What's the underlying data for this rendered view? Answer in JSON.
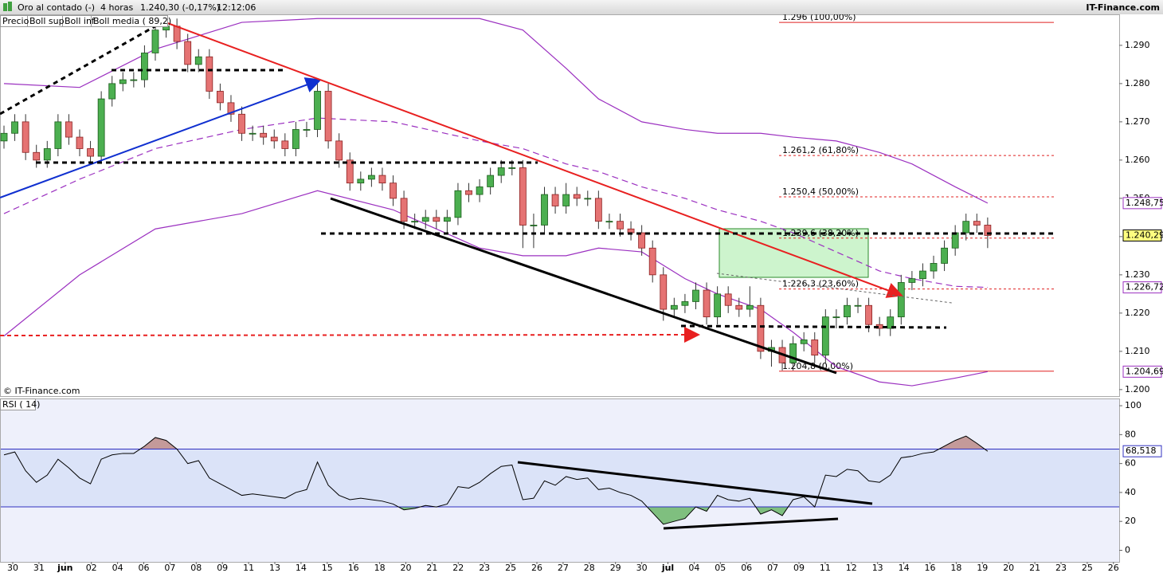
{
  "header": {
    "instrument": "Oro al contado (-)",
    "timeframe": "4 horas",
    "price": "1.240,30 (-0,17%)",
    "time": "12:12:06",
    "brand": "IT-Finance.com"
  },
  "watermark": "© IT-Finance.com",
  "chart_data": [
    {
      "type": "candlestick",
      "ylim": [
        1.1983,
        1.2981
      ],
      "yticks": [
        {
          "value": 1.2,
          "label": "1.200"
        },
        {
          "value": 1.21,
          "label": "1.210"
        },
        {
          "value": 1.22,
          "label": "1.220"
        },
        {
          "value": 1.23,
          "label": "1.230"
        },
        {
          "value": 1.24,
          "label": "1.240"
        },
        {
          "value": 1.25,
          "label": "1.250"
        },
        {
          "value": 1.26,
          "label": "1.260"
        },
        {
          "value": 1.27,
          "label": "1.270"
        },
        {
          "value": 1.28,
          "label": "1.280"
        },
        {
          "value": 1.29,
          "label": "1.290"
        }
      ],
      "date_labels": [
        "30",
        "31",
        "jun",
        "02",
        "04",
        "06",
        "07",
        "08",
        "09",
        "11",
        "13",
        "14",
        "15",
        "16",
        "18",
        "20",
        "21",
        "22",
        "23",
        "25",
        "26",
        "27",
        "28",
        "29",
        "30",
        "jul",
        "04",
        "05",
        "06",
        "07",
        "09",
        "11",
        "12",
        "13",
        "14",
        "16",
        "18",
        "19",
        "20",
        "21",
        "23",
        "25",
        "26"
      ],
      "candles": {
        "name": "Precio",
        "up_color": "#4caf50",
        "down_color": "#e57373",
        "open": [
          1.265,
          1.267,
          1.27,
          1.262,
          1.26,
          1.263,
          1.27,
          1.266,
          1.263,
          1.261,
          1.276,
          1.28,
          1.281,
          1.281,
          1.288,
          1.294,
          1.295,
          1.291,
          1.285,
          1.287,
          1.278,
          1.275,
          1.272,
          1.267,
          1.267,
          1.266,
          1.265,
          1.263,
          1.268,
          1.268,
          1.278,
          1.265,
          1.26,
          1.254,
          1.255,
          1.256,
          1.254,
          1.25,
          1.244,
          1.244,
          1.245,
          1.244,
          1.245,
          1.252,
          1.251,
          1.253,
          1.256,
          1.258,
          1.258,
          1.243,
          1.243,
          1.251,
          1.248,
          1.251,
          1.25,
          1.25,
          1.244,
          1.244,
          1.242,
          1.241,
          1.237,
          1.23,
          1.221,
          1.222,
          1.223,
          1.226,
          1.219,
          1.225,
          1.222,
          1.221,
          1.222,
          1.21,
          1.211,
          1.207,
          1.212,
          1.213,
          1.209,
          1.219,
          1.219,
          1.222,
          1.222,
          1.217,
          1.216,
          1.219,
          1.228,
          1.229,
          1.231,
          1.233,
          1.237,
          1.241,
          1.244,
          1.243
        ],
        "high": [
          1.269,
          1.272,
          1.272,
          1.264,
          1.265,
          1.272,
          1.272,
          1.268,
          1.265,
          1.278,
          1.282,
          1.283,
          1.283,
          1.29,
          1.296,
          1.297,
          1.297,
          1.293,
          1.289,
          1.289,
          1.28,
          1.277,
          1.274,
          1.269,
          1.269,
          1.268,
          1.267,
          1.27,
          1.27,
          1.281,
          1.28,
          1.267,
          1.262,
          1.257,
          1.258,
          1.258,
          1.256,
          1.252,
          1.246,
          1.247,
          1.247,
          1.247,
          1.254,
          1.254,
          1.255,
          1.258,
          1.26,
          1.26,
          1.26,
          1.246,
          1.253,
          1.253,
          1.254,
          1.253,
          1.252,
          1.252,
          1.246,
          1.246,
          1.244,
          1.243,
          1.239,
          1.232,
          1.224,
          1.225,
          1.228,
          1.228,
          1.227,
          1.227,
          1.224,
          1.227,
          1.224,
          1.213,
          1.213,
          1.214,
          1.215,
          1.215,
          1.221,
          1.221,
          1.224,
          1.224,
          1.224,
          1.219,
          1.221,
          1.23,
          1.231,
          1.233,
          1.235,
          1.239,
          1.243,
          1.246,
          1.246,
          1.245
        ],
        "low": [
          1.263,
          1.265,
          1.26,
          1.258,
          1.258,
          1.261,
          1.264,
          1.261,
          1.259,
          1.259,
          1.274,
          1.278,
          1.279,
          1.279,
          1.286,
          1.292,
          1.289,
          1.283,
          1.283,
          1.276,
          1.273,
          1.27,
          1.265,
          1.265,
          1.264,
          1.263,
          1.261,
          1.261,
          1.266,
          1.266,
          1.263,
          1.258,
          1.252,
          1.252,
          1.253,
          1.252,
          1.248,
          1.242,
          1.242,
          1.242,
          1.242,
          1.241,
          1.243,
          1.249,
          1.249,
          1.251,
          1.254,
          1.256,
          1.237,
          1.237,
          1.241,
          1.246,
          1.246,
          1.248,
          1.248,
          1.242,
          1.242,
          1.24,
          1.239,
          1.235,
          1.228,
          1.218,
          1.219,
          1.22,
          1.221,
          1.217,
          1.217,
          1.22,
          1.219,
          1.219,
          1.208,
          1.206,
          1.205,
          1.205,
          1.21,
          1.207,
          1.207,
          1.216,
          1.217,
          1.22,
          1.215,
          1.214,
          1.214,
          1.217,
          1.226,
          1.227,
          1.229,
          1.231,
          1.235,
          1.239,
          1.241,
          1.237
        ],
        "close": [
          1.267,
          1.27,
          1.262,
          1.26,
          1.263,
          1.27,
          1.266,
          1.263,
          1.261,
          1.276,
          1.28,
          1.281,
          1.281,
          1.288,
          1.294,
          1.295,
          1.291,
          1.285,
          1.287,
          1.278,
          1.275,
          1.272,
          1.267,
          1.267,
          1.266,
          1.265,
          1.263,
          1.268,
          1.268,
          1.278,
          1.265,
          1.26,
          1.254,
          1.255,
          1.256,
          1.254,
          1.25,
          1.244,
          1.244,
          1.245,
          1.244,
          1.245,
          1.252,
          1.251,
          1.253,
          1.256,
          1.258,
          1.258,
          1.243,
          1.243,
          1.251,
          1.248,
          1.251,
          1.25,
          1.25,
          1.244,
          1.244,
          1.242,
          1.241,
          1.237,
          1.23,
          1.221,
          1.222,
          1.223,
          1.226,
          1.219,
          1.225,
          1.222,
          1.221,
          1.222,
          1.21,
          1.211,
          1.207,
          1.212,
          1.213,
          1.209,
          1.219,
          1.219,
          1.222,
          1.222,
          1.217,
          1.216,
          1.219,
          1.228,
          1.229,
          1.231,
          1.233,
          1.237,
          1.241,
          1.244,
          1.243,
          1.24029
        ]
      },
      "series": [
        {
          "name": "Boll sup",
          "color": "#9b30c0",
          "dashed": false,
          "x": [
            0,
            7,
            14,
            22,
            29,
            36,
            44,
            48,
            52,
            55,
            59,
            63,
            66,
            70,
            73,
            77,
            81,
            84,
            88,
            91
          ],
          "values": [
            1.28,
            1.279,
            1.289,
            1.296,
            1.297,
            1.297,
            1.297,
            1.294,
            1.284,
            1.276,
            1.27,
            1.268,
            1.267,
            1.267,
            1.266,
            1.265,
            1.262,
            1.259,
            1.253,
            1.24875
          ]
        },
        {
          "name": "Boll inf",
          "color": "#9b30c0",
          "dashed": false,
          "x": [
            0,
            7,
            14,
            22,
            29,
            36,
            44,
            48,
            52,
            55,
            59,
            63,
            66,
            70,
            73,
            77,
            81,
            84,
            88,
            91
          ],
          "values": [
            1.214,
            1.23,
            1.242,
            1.246,
            1.252,
            1.247,
            1.237,
            1.235,
            1.235,
            1.237,
            1.236,
            1.229,
            1.225,
            1.221,
            1.215,
            1.206,
            1.202,
            1.201,
            1.203,
            1.20469
          ]
        },
        {
          "name": "Boll media ( 89,2)",
          "color": "#9b30c0",
          "dashed": true,
          "x": [
            0,
            7,
            14,
            22,
            29,
            36,
            44,
            48,
            52,
            55,
            59,
            63,
            66,
            70,
            73,
            77,
            81,
            84,
            88,
            91
          ],
          "values": [
            1.246,
            1.255,
            1.263,
            1.268,
            1.271,
            1.27,
            1.265,
            1.263,
            1.259,
            1.257,
            1.253,
            1.25,
            1.247,
            1.244,
            1.241,
            1.236,
            1.231,
            1.229,
            1.227,
            1.22672
          ]
        }
      ],
      "fib_levels": [
        {
          "value": 1.296,
          "label": "1.296 (100,00%)"
        },
        {
          "value": 1.2612,
          "label": "1.261,2 (61,80%)"
        },
        {
          "value": 1.2504,
          "label": "1.250,4 (50,00%)"
        },
        {
          "value": 1.2396,
          "label": "1.239,6 (38,20%)"
        },
        {
          "value": 1.2263,
          "label": "1.226,3 (23,60%)"
        },
        {
          "value": 1.2048,
          "label": "1.204,8 (0,00%)"
        }
      ],
      "fib_color": "#e02020",
      "price_tags": [
        {
          "value": 1.24875,
          "label": "1.248,75",
          "color": "#9b30c0",
          "fill": "#ffffff"
        },
        {
          "value": 1.24029,
          "label": "1.240,29",
          "color": "#000000",
          "fill": "#ffff80"
        },
        {
          "value": 1.22672,
          "label": "1.226,72",
          "color": "#9b30c0",
          "fill": "#ffffff"
        },
        {
          "value": 1.20469,
          "label": "1.204,69",
          "color": "#9b30c0",
          "fill": "#ffffff"
        }
      ]
    },
    {
      "type": "line",
      "title": "RSI ( 14)",
      "ylim": [
        -8,
        105
      ],
      "yticks": [
        0,
        20,
        40,
        60,
        80,
        100
      ],
      "levels": [
        30,
        70
      ],
      "level_color": "#3030c0",
      "series": [
        {
          "name": "RSI ( 14)",
          "color": "#000000",
          "values": [
            66,
            68,
            55,
            47,
            52,
            63,
            57,
            50,
            46,
            63,
            66,
            67,
            67,
            72,
            78,
            76,
            70,
            60,
            62,
            50,
            46,
            42,
            38,
            39,
            38,
            37,
            36,
            40,
            42,
            61,
            45,
            38,
            35,
            36,
            35,
            34,
            32,
            28,
            29,
            31,
            30,
            32,
            44,
            43,
            47,
            53,
            58,
            59,
            35,
            36,
            48,
            45,
            51,
            49,
            50,
            42,
            43,
            40,
            38,
            34,
            26,
            18,
            20,
            22,
            30,
            27,
            38,
            35,
            34,
            36,
            25,
            28,
            24,
            35,
            37,
            30,
            52,
            51,
            56,
            55,
            48,
            47,
            52,
            64,
            65,
            67,
            68,
            72,
            76,
            79,
            74,
            68.518
          ]
        }
      ],
      "over_color": "#c49a9a",
      "under_color": "#7fbf7f",
      "price_tags": [
        {
          "value": 68.518,
          "label": "68,518",
          "color": "#3030c0",
          "fill": "#ffffff"
        }
      ]
    }
  ]
}
